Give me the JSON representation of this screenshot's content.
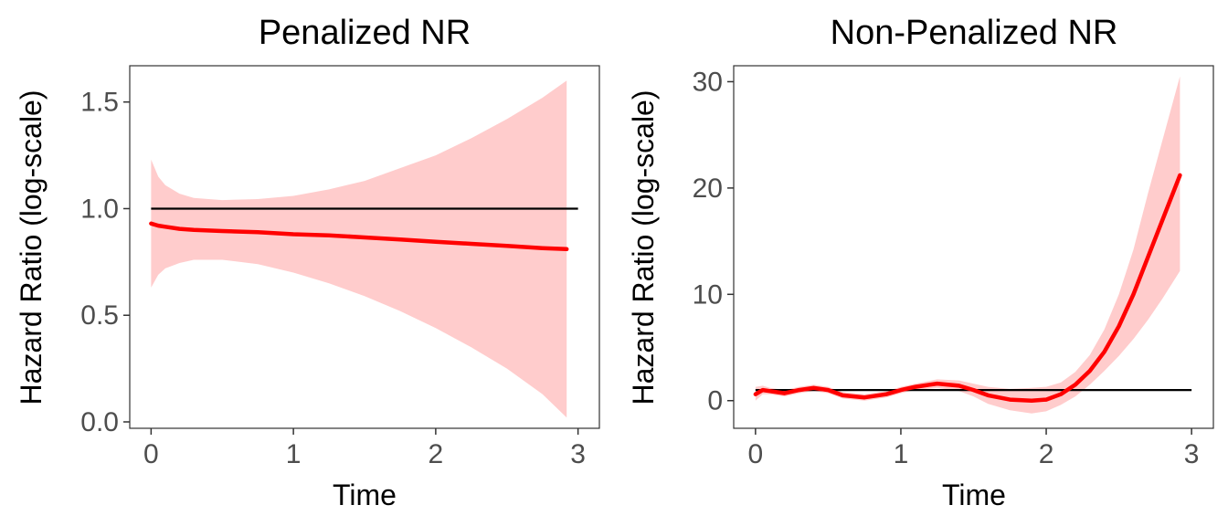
{
  "chart_data": [
    {
      "type": "line",
      "title": "Penalized NR",
      "xlabel": "Time",
      "ylabel": "Hazard Ratio (log-scale)",
      "xlim": [
        -0.15,
        3.15
      ],
      "ylim": [
        -0.03,
        1.67
      ],
      "x_ticks": [
        0,
        1,
        2,
        3
      ],
      "x_tick_labels": [
        "0",
        "1",
        "2",
        "3"
      ],
      "y_ticks": [
        0,
        0.5,
        1,
        1.5
      ],
      "y_tick_labels": [
        "0.0",
        "0.5",
        "1.0",
        "1.5"
      ],
      "grid": false,
      "reference_line": {
        "y": 1.0,
        "x": [
          0,
          3
        ],
        "color": "#000000"
      },
      "series": [
        {
          "color": "#ff0000",
          "band_color": "#ffcccc",
          "x": [
            0.0,
            0.05,
            0.1,
            0.2,
            0.3,
            0.5,
            0.75,
            1.0,
            1.25,
            1.5,
            1.75,
            2.0,
            2.25,
            2.5,
            2.75,
            2.92
          ],
          "y": [
            0.93,
            0.92,
            0.915,
            0.905,
            0.9,
            0.895,
            0.89,
            0.88,
            0.875,
            0.865,
            0.855,
            0.845,
            0.835,
            0.825,
            0.815,
            0.81
          ],
          "lower": [
            0.63,
            0.69,
            0.72,
            0.745,
            0.76,
            0.76,
            0.74,
            0.7,
            0.65,
            0.59,
            0.52,
            0.44,
            0.35,
            0.25,
            0.13,
            0.02
          ],
          "upper": [
            1.23,
            1.15,
            1.11,
            1.07,
            1.05,
            1.04,
            1.045,
            1.06,
            1.09,
            1.13,
            1.19,
            1.25,
            1.33,
            1.42,
            1.52,
            1.6
          ]
        }
      ]
    },
    {
      "type": "line",
      "title": "Non-Penalized NR",
      "xlabel": "Time",
      "ylabel": "Hazard Ratio (log-scale)",
      "xlim": [
        -0.15,
        3.15
      ],
      "ylim": [
        -2.6,
        31.5
      ],
      "x_ticks": [
        0,
        1,
        2,
        3
      ],
      "x_tick_labels": [
        "0",
        "1",
        "2",
        "3"
      ],
      "y_ticks": [
        0,
        10,
        20,
        30
      ],
      "y_tick_labels": [
        "0",
        "10",
        "20",
        "30"
      ],
      "grid": false,
      "reference_line": {
        "y": 1.0,
        "x": [
          0,
          3
        ],
        "color": "#000000"
      },
      "series": [
        {
          "color": "#ff0000",
          "band_color": "#ffcccc",
          "x": [
            0.0,
            0.05,
            0.1,
            0.2,
            0.3,
            0.4,
            0.5,
            0.6,
            0.75,
            0.9,
            1.0,
            1.1,
            1.25,
            1.4,
            1.5,
            1.6,
            1.75,
            1.9,
            2.0,
            2.1,
            2.2,
            2.3,
            2.4,
            2.5,
            2.6,
            2.7,
            2.8,
            2.92
          ],
          "y": [
            0.6,
            1.0,
            0.9,
            0.7,
            1.0,
            1.2,
            1.0,
            0.5,
            0.3,
            0.6,
            1.0,
            1.3,
            1.6,
            1.4,
            1.0,
            0.5,
            0.1,
            0.0,
            0.1,
            0.6,
            1.5,
            2.8,
            4.6,
            7.0,
            10.0,
            13.5,
            17.0,
            21.2
          ],
          "lower": [
            0.0,
            0.6,
            0.6,
            0.4,
            0.7,
            0.9,
            0.7,
            0.2,
            0.0,
            0.3,
            0.7,
            1.0,
            1.2,
            0.9,
            0.4,
            -0.3,
            -0.9,
            -1.2,
            -1.0,
            -0.4,
            0.4,
            1.5,
            2.8,
            4.2,
            5.8,
            7.6,
            9.6,
            12.2
          ],
          "upper": [
            1.3,
            1.4,
            1.2,
            1.0,
            1.3,
            1.5,
            1.3,
            0.8,
            0.6,
            0.9,
            1.3,
            1.6,
            2.0,
            1.9,
            1.6,
            1.3,
            1.1,
            1.2,
            1.3,
            1.7,
            2.7,
            4.3,
            6.7,
            10.0,
            14.2,
            19.5,
            24.5,
            30.5
          ]
        }
      ]
    }
  ]
}
